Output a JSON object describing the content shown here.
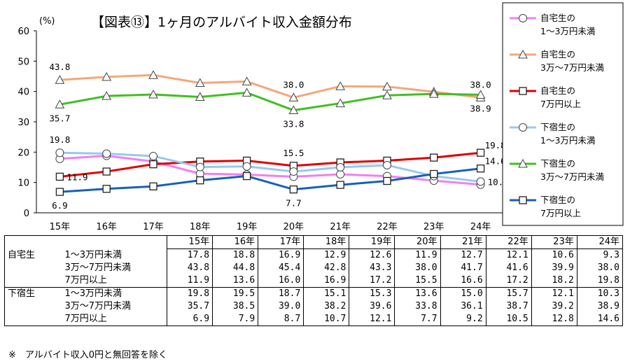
{
  "chart_data": {
    "type": "line",
    "title": "【図表⑬】1ヶ月のアルバイト収入金額分布",
    "ylabel": "(%)",
    "ylim": [
      0,
      60
    ],
    "yticks": [
      0,
      10,
      20,
      30,
      40,
      50,
      60
    ],
    "categories": [
      "15年",
      "16年",
      "17年",
      "18年",
      "19年",
      "20年",
      "21年",
      "22年",
      "23年",
      "24年"
    ],
    "series": [
      {
        "name": "自宅生の\n1～3万円未満",
        "color": "#f080f0",
        "marker": "circle",
        "values": [
          17.8,
          18.8,
          16.9,
          12.9,
          12.6,
          11.9,
          12.7,
          12.1,
          10.6,
          9.3
        ]
      },
      {
        "name": "自宅生の\n3万～7万円未満",
        "color": "#f4a878",
        "marker": "triangle",
        "values": [
          43.8,
          44.8,
          45.4,
          42.8,
          43.3,
          38.0,
          41.7,
          41.6,
          39.9,
          38.0
        ]
      },
      {
        "name": "自宅生の\n7万円以上",
        "color": "#e00000",
        "marker": "square",
        "values": [
          11.9,
          13.6,
          16.0,
          16.9,
          17.2,
          15.5,
          16.6,
          17.2,
          18.2,
          19.8
        ]
      },
      {
        "name": "下宿生の\n1～3万円未満",
        "color": "#98c8f0",
        "marker": "circle",
        "values": [
          19.8,
          19.5,
          18.7,
          15.1,
          15.3,
          13.6,
          15.0,
          15.7,
          12.1,
          10.3
        ]
      },
      {
        "name": "下宿生の\n3万～7万円未満",
        "color": "#40c020",
        "marker": "triangle",
        "values": [
          35.7,
          38.5,
          39.0,
          38.2,
          39.6,
          33.8,
          36.1,
          38.7,
          39.2,
          38.9
        ]
      },
      {
        "name": "下宿生の\n7万円以上",
        "color": "#1860b8",
        "marker": "square",
        "values": [
          6.9,
          7.9,
          8.7,
          10.7,
          12.1,
          7.7,
          9.2,
          10.5,
          12.8,
          14.6
        ]
      }
    ],
    "annotations": [
      {
        "series": 1,
        "index": 0,
        "text": "43.8",
        "pos": "above"
      },
      {
        "series": 4,
        "index": 0,
        "text": "35.7",
        "pos": "below"
      },
      {
        "series": 3,
        "index": 0,
        "text": "19.8",
        "pos": "above"
      },
      {
        "series": 2,
        "index": 0,
        "text": "11.9",
        "pos": "right"
      },
      {
        "series": 5,
        "index": 0,
        "text": "6.9",
        "pos": "below"
      },
      {
        "series": 1,
        "index": 5,
        "text": "38.0",
        "pos": "above"
      },
      {
        "series": 4,
        "index": 5,
        "text": "33.8",
        "pos": "below"
      },
      {
        "series": 2,
        "index": 5,
        "text": "15.5",
        "pos": "above"
      },
      {
        "series": 5,
        "index": 5,
        "text": "7.7",
        "pos": "below"
      },
      {
        "series": 1,
        "index": 9,
        "text": "38.0",
        "pos": "above"
      },
      {
        "series": 4,
        "index": 9,
        "text": "38.9",
        "pos": "below"
      },
      {
        "series": 2,
        "index": 9,
        "text": "19.8",
        "pos": "aboveright"
      },
      {
        "series": 5,
        "index": 9,
        "text": "14.6",
        "pos": "aboveright"
      },
      {
        "series": 3,
        "index": 9,
        "text": "10.3",
        "pos": "right"
      }
    ]
  },
  "table": {
    "years": [
      "15年",
      "16年",
      "17年",
      "18年",
      "19年",
      "20年",
      "21年",
      "22年",
      "23年",
      "24年"
    ],
    "groups": [
      {
        "label": "自宅生",
        "rows": [
          {
            "label": "1～3万円未満",
            "values": [
              "17.8",
              "18.8",
              "16.9",
              "12.9",
              "12.6",
              "11.9",
              "12.7",
              "12.1",
              "10.6",
              "9.3"
            ]
          },
          {
            "label": "3万～7万円未満",
            "values": [
              "43.8",
              "44.8",
              "45.4",
              "42.8",
              "43.3",
              "38.0",
              "41.7",
              "41.6",
              "39.9",
              "38.0"
            ]
          },
          {
            "label": "7万円以上",
            "values": [
              "11.9",
              "13.6",
              "16.0",
              "16.9",
              "17.2",
              "15.5",
              "16.6",
              "17.2",
              "18.2",
              "19.8"
            ]
          }
        ]
      },
      {
        "label": "下宿生",
        "rows": [
          {
            "label": "1～3万円未満",
            "values": [
              "19.8",
              "19.5",
              "18.7",
              "15.1",
              "15.3",
              "13.6",
              "15.0",
              "15.7",
              "12.1",
              "10.3"
            ]
          },
          {
            "label": "3万～7万円未満",
            "values": [
              "35.7",
              "38.5",
              "39.0",
              "38.2",
              "39.6",
              "33.8",
              "36.1",
              "38.7",
              "39.2",
              "38.9"
            ]
          },
          {
            "label": "7万円以上",
            "values": [
              "6.9",
              "7.9",
              "8.7",
              "10.7",
              "12.1",
              "7.7",
              "9.2",
              "10.5",
              "12.8",
              "14.6"
            ]
          }
        ]
      }
    ]
  },
  "note": "※　アルバイト収入0円と無回答を除く"
}
